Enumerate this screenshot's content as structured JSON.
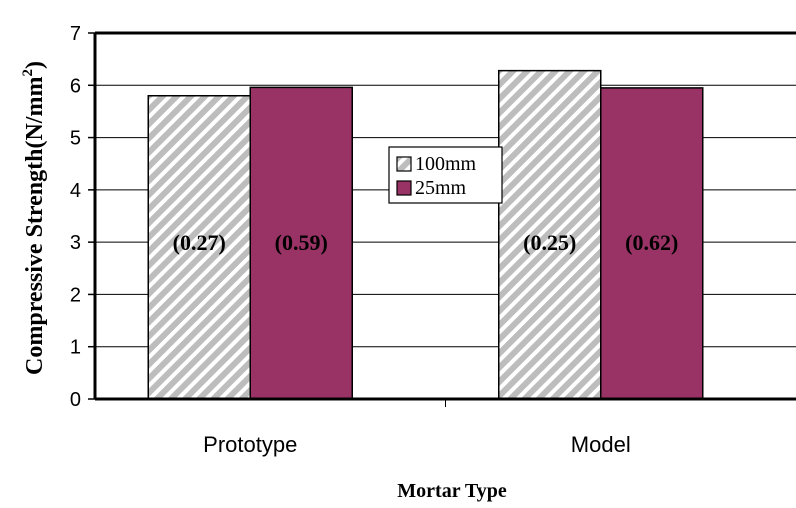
{
  "chart_data": {
    "type": "bar",
    "categories": [
      "Prototype",
      "Model"
    ],
    "series": [
      {
        "name": "100mm",
        "values": [
          5.8,
          6.28
        ],
        "labels": [
          "(0.27)",
          "(0.25)"
        ],
        "color": "#c0c0c0",
        "pattern": "diagonal-stripes"
      },
      {
        "name": "25mm",
        "values": [
          5.96,
          5.95
        ],
        "labels": [
          "(0.59)",
          "(0.62)"
        ],
        "color": "#993366",
        "pattern": "solid"
      }
    ],
    "title": "",
    "xlabel": "Mortar Type",
    "ylabel": "Compressive Strength(N/mm",
    "ylabel_superscript": "2",
    "ylabel_suffix": ")",
    "ylim": [
      0,
      7
    ],
    "yticks": [
      "0",
      "1",
      "2",
      "3",
      "4",
      "5",
      "6",
      "7"
    ],
    "grid": true,
    "legend_position": "center"
  }
}
